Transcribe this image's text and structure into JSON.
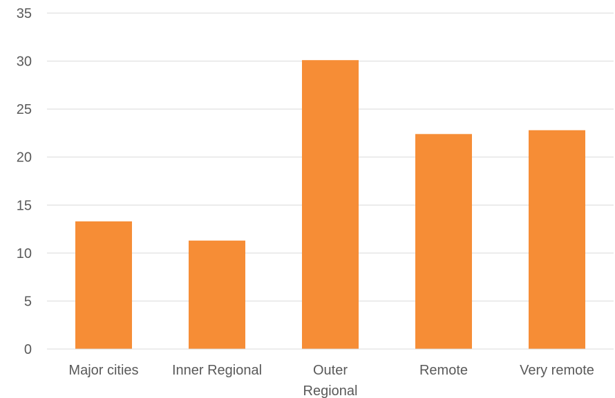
{
  "chart_data": {
    "type": "bar",
    "title": "",
    "xlabel": "",
    "ylabel": "",
    "categories": [
      [
        "Major cities"
      ],
      [
        "Inner Regional"
      ],
      [
        "Outer",
        "Regional"
      ],
      [
        "Remote"
      ],
      [
        "Very remote"
      ]
    ],
    "values": [
      13.3,
      11.3,
      30.1,
      22.4,
      22.8
    ],
    "ylim": [
      0,
      35
    ],
    "yticks": [
      0,
      5,
      10,
      15,
      20,
      25,
      30,
      35
    ],
    "grid": true,
    "legend": "none",
    "bar_color": "#f68d36"
  }
}
